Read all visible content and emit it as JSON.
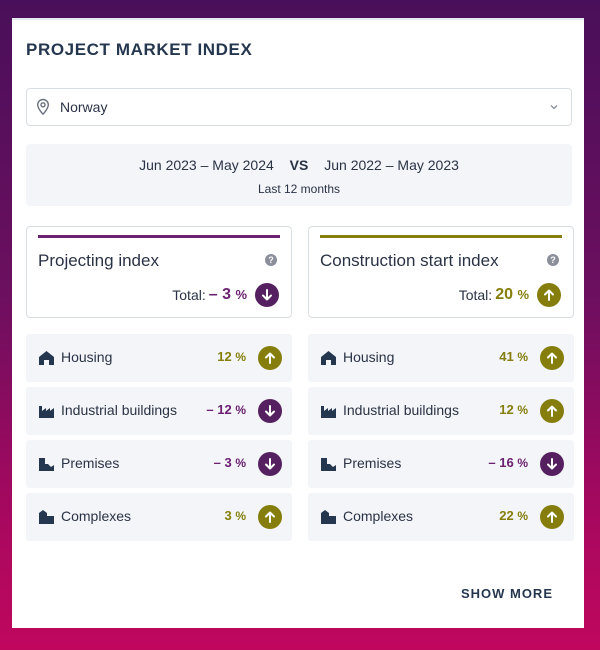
{
  "header": {
    "title": "PROJECT MARKET INDEX"
  },
  "location": {
    "value": "Norway",
    "icon": "location-pin-icon",
    "chevron_icon": "chevron-down-icon"
  },
  "period": {
    "current": "Jun 2023 – May 2024",
    "vs": "VS",
    "previous": "Jun 2022 – May 2023",
    "note": "Last 12 months"
  },
  "colors": {
    "olive": "#857e0c",
    "plum": "#6b2070",
    "plum_dark": "#55205f",
    "text": "#2a3345"
  },
  "projecting": {
    "label": "Projecting index",
    "help": "?",
    "total_label": "Total:",
    "total_value": "– 3",
    "total_unit": "%",
    "trend": "down",
    "rows": [
      {
        "label": "Housing",
        "icon": "housing-icon",
        "value": "12",
        "unit": "%",
        "trend": "up"
      },
      {
        "label": "Industrial buildings",
        "icon": "factory-icon",
        "value": "– 12",
        "unit": "%",
        "trend": "down"
      },
      {
        "label": "Premises",
        "icon": "premises-icon",
        "value": "– 3",
        "unit": "%",
        "trend": "down"
      },
      {
        "label": "Complexes",
        "icon": "complexes-icon",
        "value": "3",
        "unit": "%",
        "trend": "up"
      }
    ]
  },
  "construction": {
    "label": "Construction start index",
    "help": "?",
    "total_label": "Total:",
    "total_value": "20",
    "total_unit": "%",
    "trend": "up",
    "rows": [
      {
        "label": "Housing",
        "icon": "housing-icon",
        "value": "41",
        "unit": "%",
        "trend": "up"
      },
      {
        "label": "Industrial buildings",
        "icon": "factory-icon",
        "value": "12",
        "unit": "%",
        "trend": "up"
      },
      {
        "label": "Premises",
        "icon": "premises-icon",
        "value": "– 16",
        "unit": "%",
        "trend": "down"
      },
      {
        "label": "Complexes",
        "icon": "complexes-icon",
        "value": "22",
        "unit": "%",
        "trend": "up"
      }
    ]
  },
  "footer": {
    "show_more": "SHOW MORE"
  }
}
